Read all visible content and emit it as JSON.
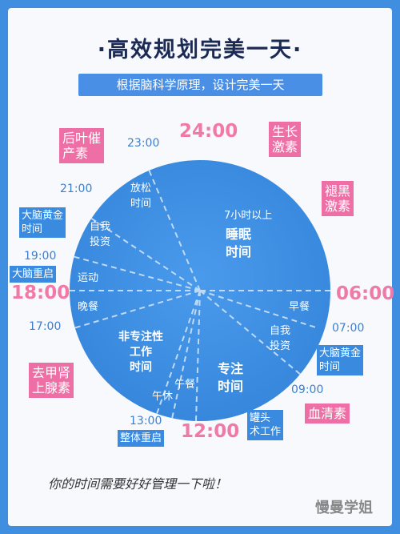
{
  "header": {
    "title": "·高效规划完美一天·",
    "subtitle": "根据脑科学原理，设计完美一天"
  },
  "times": {
    "t2300": "23:00",
    "t2400": "24:00",
    "t2100": "21:00",
    "t1900": "19:00",
    "t1800": "18:00",
    "t1700": "17:00",
    "t0600": "06:00",
    "t0700": "07:00",
    "t0900": "09:00",
    "t1300": "13:00",
    "t1200": "12:00"
  },
  "segments": {
    "sleep_small": "7小时以上",
    "sleep_big": "睡眠\n时间",
    "relax": "放松\n时间",
    "self_invest_left": "自我\n投资",
    "exercise": "运动",
    "dinner": "晚餐",
    "breakfast": "早餐",
    "self_invest_right": "自我\n投资",
    "nonfocus": "非专注性\n工作\n时间",
    "focus": "专注\n时间",
    "lunch": "午餐",
    "nap": "午休"
  },
  "hormones": {
    "cortisol": "后叶催\n产素",
    "growth": "生长\n激素",
    "melatonin": "褪黑\n激素",
    "thyroid": "去甲肾\n上腺素",
    "serotonin": "血清素"
  },
  "brain_tags": {
    "golden_evening": "大脑黄金\n时间",
    "reset_1900": "大脑重启",
    "golden_morning": "大脑黄金\n时间",
    "reset_1300": "整体重启",
    "cans": "罐头\n术工作"
  },
  "footer": {
    "text": "你的时间需要好好管理一下啦！",
    "brand": "慢曼学姐"
  },
  "colors": {
    "background": "#3f8ee0",
    "circle": "#3f8ee0",
    "pink": "#ee6fa5"
  }
}
